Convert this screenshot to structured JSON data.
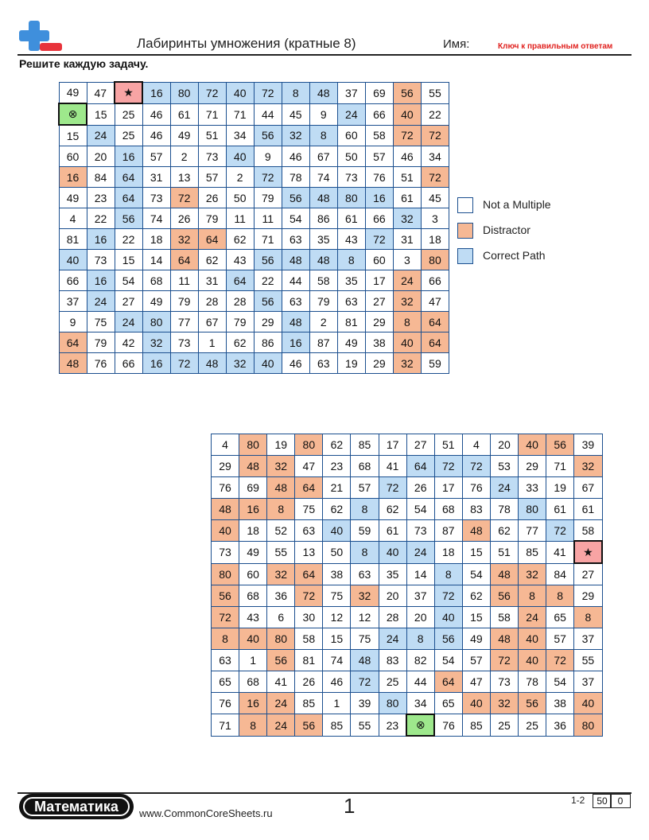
{
  "header": {
    "title": "Лабиринты умножения (кратные 8)",
    "name_label": "Имя:",
    "answer_key": "Ключ к правильным ответам",
    "instructions": "Решите каждую задачу."
  },
  "symbols": {
    "start": "★",
    "end": "⊗"
  },
  "colors": {
    "not_multiple": "#ffffff",
    "distractor": "#f6b894",
    "correct_path": "#bfdcf4",
    "start": "#f8a4a4",
    "end": "#9ee88c",
    "grid_line": "#1b4f8f",
    "answer_key_text": "#e0211e"
  },
  "legend": [
    {
      "label": "Not a Multiple",
      "type": "n"
    },
    {
      "label": "Distractor",
      "type": "d"
    },
    {
      "label": "Correct Path",
      "type": "c"
    }
  ],
  "mazes": [
    {
      "rows": [
        [
          "49:n",
          "47:n",
          "★:s",
          "16:c",
          "80:c",
          "72:c",
          "40:c",
          "72:c",
          "8:c",
          "48:c",
          "37:n",
          "69:n",
          "56:d",
          "55:n"
        ],
        [
          "⊗:e",
          "15:n",
          "25:n",
          "46:n",
          "61:n",
          "71:n",
          "71:n",
          "44:n",
          "45:n",
          "9:n",
          "24:c",
          "66:n",
          "40:d",
          "22:n"
        ],
        [
          "15:n",
          "24:c",
          "25:n",
          "46:n",
          "49:n",
          "51:n",
          "34:n",
          "56:c",
          "32:c",
          "8:c",
          "60:n",
          "58:n",
          "72:d",
          "72:d"
        ],
        [
          "60:n",
          "20:n",
          "16:c",
          "57:n",
          "2:n",
          "73:n",
          "40:c",
          "9:n",
          "46:n",
          "67:n",
          "50:n",
          "57:n",
          "46:n",
          "34:n"
        ],
        [
          "16:d",
          "84:n",
          "64:c",
          "31:n",
          "13:n",
          "57:n",
          "2:n",
          "72:c",
          "78:n",
          "74:n",
          "73:n",
          "76:n",
          "51:n",
          "72:d"
        ],
        [
          "49:n",
          "23:n",
          "64:c",
          "73:n",
          "72:d",
          "26:n",
          "50:n",
          "79:n",
          "56:c",
          "48:c",
          "80:c",
          "16:c",
          "61:n",
          "45:n"
        ],
        [
          "4:n",
          "22:n",
          "56:c",
          "74:n",
          "26:n",
          "79:n",
          "11:n",
          "11:n",
          "54:n",
          "86:n",
          "61:n",
          "66:n",
          "32:c",
          "3:n"
        ],
        [
          "81:n",
          "16:c",
          "22:n",
          "18:n",
          "32:d",
          "64:d",
          "62:n",
          "71:n",
          "63:n",
          "35:n",
          "43:n",
          "72:c",
          "31:n",
          "18:n"
        ],
        [
          "40:c",
          "73:n",
          "15:n",
          "14:n",
          "64:d",
          "62:n",
          "43:n",
          "56:c",
          "48:c",
          "48:c",
          "8:c",
          "60:n",
          "3:n",
          "80:d"
        ],
        [
          "66:n",
          "16:c",
          "54:n",
          "68:n",
          "11:n",
          "31:n",
          "64:c",
          "22:n",
          "44:n",
          "58:n",
          "35:n",
          "17:n",
          "24:d",
          "66:n"
        ],
        [
          "37:n",
          "24:c",
          "27:n",
          "49:n",
          "79:n",
          "28:n",
          "28:n",
          "56:c",
          "63:n",
          "79:n",
          "63:n",
          "27:n",
          "32:d",
          "47:n"
        ],
        [
          "9:n",
          "75:n",
          "24:c",
          "80:c",
          "77:n",
          "67:n",
          "79:n",
          "29:n",
          "48:c",
          "2:n",
          "81:n",
          "29:n",
          "8:d",
          "64:d"
        ],
        [
          "64:d",
          "79:n",
          "42:n",
          "32:c",
          "73:n",
          "1:n",
          "62:n",
          "86:n",
          "16:c",
          "87:n",
          "49:n",
          "38:n",
          "40:d",
          "64:d"
        ],
        [
          "48:d",
          "76:n",
          "66:n",
          "16:c",
          "72:c",
          "48:c",
          "32:c",
          "40:c",
          "46:n",
          "63:n",
          "19:n",
          "29:n",
          "32:d",
          "59:n"
        ]
      ]
    },
    {
      "rows": [
        [
          "4:n",
          "80:d",
          "19:n",
          "80:d",
          "62:n",
          "85:n",
          "17:n",
          "27:n",
          "51:n",
          "4:n",
          "20:n",
          "40:d",
          "56:d",
          "39:n"
        ],
        [
          "29:n",
          "48:d",
          "32:d",
          "47:n",
          "23:n",
          "68:n",
          "41:n",
          "64:c",
          "72:c",
          "72:c",
          "53:n",
          "29:n",
          "71:n",
          "32:d"
        ],
        [
          "76:n",
          "69:n",
          "48:d",
          "64:d",
          "21:n",
          "57:n",
          "72:c",
          "26:n",
          "17:n",
          "76:n",
          "24:c",
          "33:n",
          "19:n",
          "67:n"
        ],
        [
          "48:d",
          "16:d",
          "8:d",
          "75:n",
          "62:n",
          "8:c",
          "62:n",
          "54:n",
          "68:n",
          "83:n",
          "78:n",
          "80:c",
          "61:n",
          "61:n"
        ],
        [
          "40:d",
          "18:n",
          "52:n",
          "63:n",
          "40:c",
          "59:n",
          "61:n",
          "73:n",
          "87:n",
          "48:d",
          "62:n",
          "77:n",
          "72:c",
          "58:n"
        ],
        [
          "73:n",
          "49:n",
          "55:n",
          "13:n",
          "50:n",
          "8:c",
          "40:c",
          "24:c",
          "18:n",
          "15:n",
          "51:n",
          "85:n",
          "41:n",
          "★:s"
        ],
        [
          "80:d",
          "60:n",
          "32:d",
          "64:d",
          "38:n",
          "63:n",
          "35:n",
          "14:n",
          "8:c",
          "54:n",
          "48:d",
          "32:d",
          "84:n",
          "27:n"
        ],
        [
          "56:d",
          "68:n",
          "36:n",
          "72:d",
          "75:n",
          "32:d",
          "20:n",
          "37:n",
          "72:c",
          "62:n",
          "56:d",
          "8:d",
          "8:d",
          "29:n"
        ],
        [
          "72:d",
          "43:n",
          "6:n",
          "30:n",
          "12:n",
          "12:n",
          "28:n",
          "20:n",
          "40:c",
          "15:n",
          "58:n",
          "24:d",
          "65:n",
          "8:d"
        ],
        [
          "8:d",
          "40:d",
          "80:d",
          "58:n",
          "15:n",
          "75:n",
          "24:c",
          "8:c",
          "56:c",
          "49:n",
          "48:d",
          "40:d",
          "57:n",
          "37:n"
        ],
        [
          "63:n",
          "1:n",
          "56:d",
          "81:n",
          "74:n",
          "48:c",
          "83:n",
          "82:n",
          "54:n",
          "57:n",
          "72:d",
          "40:d",
          "72:d",
          "55:n"
        ],
        [
          "65:n",
          "68:n",
          "41:n",
          "26:n",
          "46:n",
          "72:c",
          "25:n",
          "44:n",
          "64:d",
          "47:n",
          "73:n",
          "78:n",
          "54:n",
          "37:n"
        ],
        [
          "76:n",
          "16:d",
          "24:d",
          "85:n",
          "1:n",
          "39:n",
          "80:c",
          "34:n",
          "65:n",
          "40:d",
          "32:d",
          "56:d",
          "38:n",
          "40:d"
        ],
        [
          "71:n",
          "8:d",
          "24:d",
          "56:d",
          "85:n",
          "55:n",
          "23:n",
          "⊗:e",
          "76:n",
          "85:n",
          "25:n",
          "25:n",
          "36:n",
          "80:d"
        ]
      ]
    }
  ],
  "footer": {
    "brand": "Математика",
    "site": "www.CommonCoreSheets.ru",
    "page": "1",
    "range": "1-2",
    "score_total": "50",
    "score_zero": "0"
  }
}
